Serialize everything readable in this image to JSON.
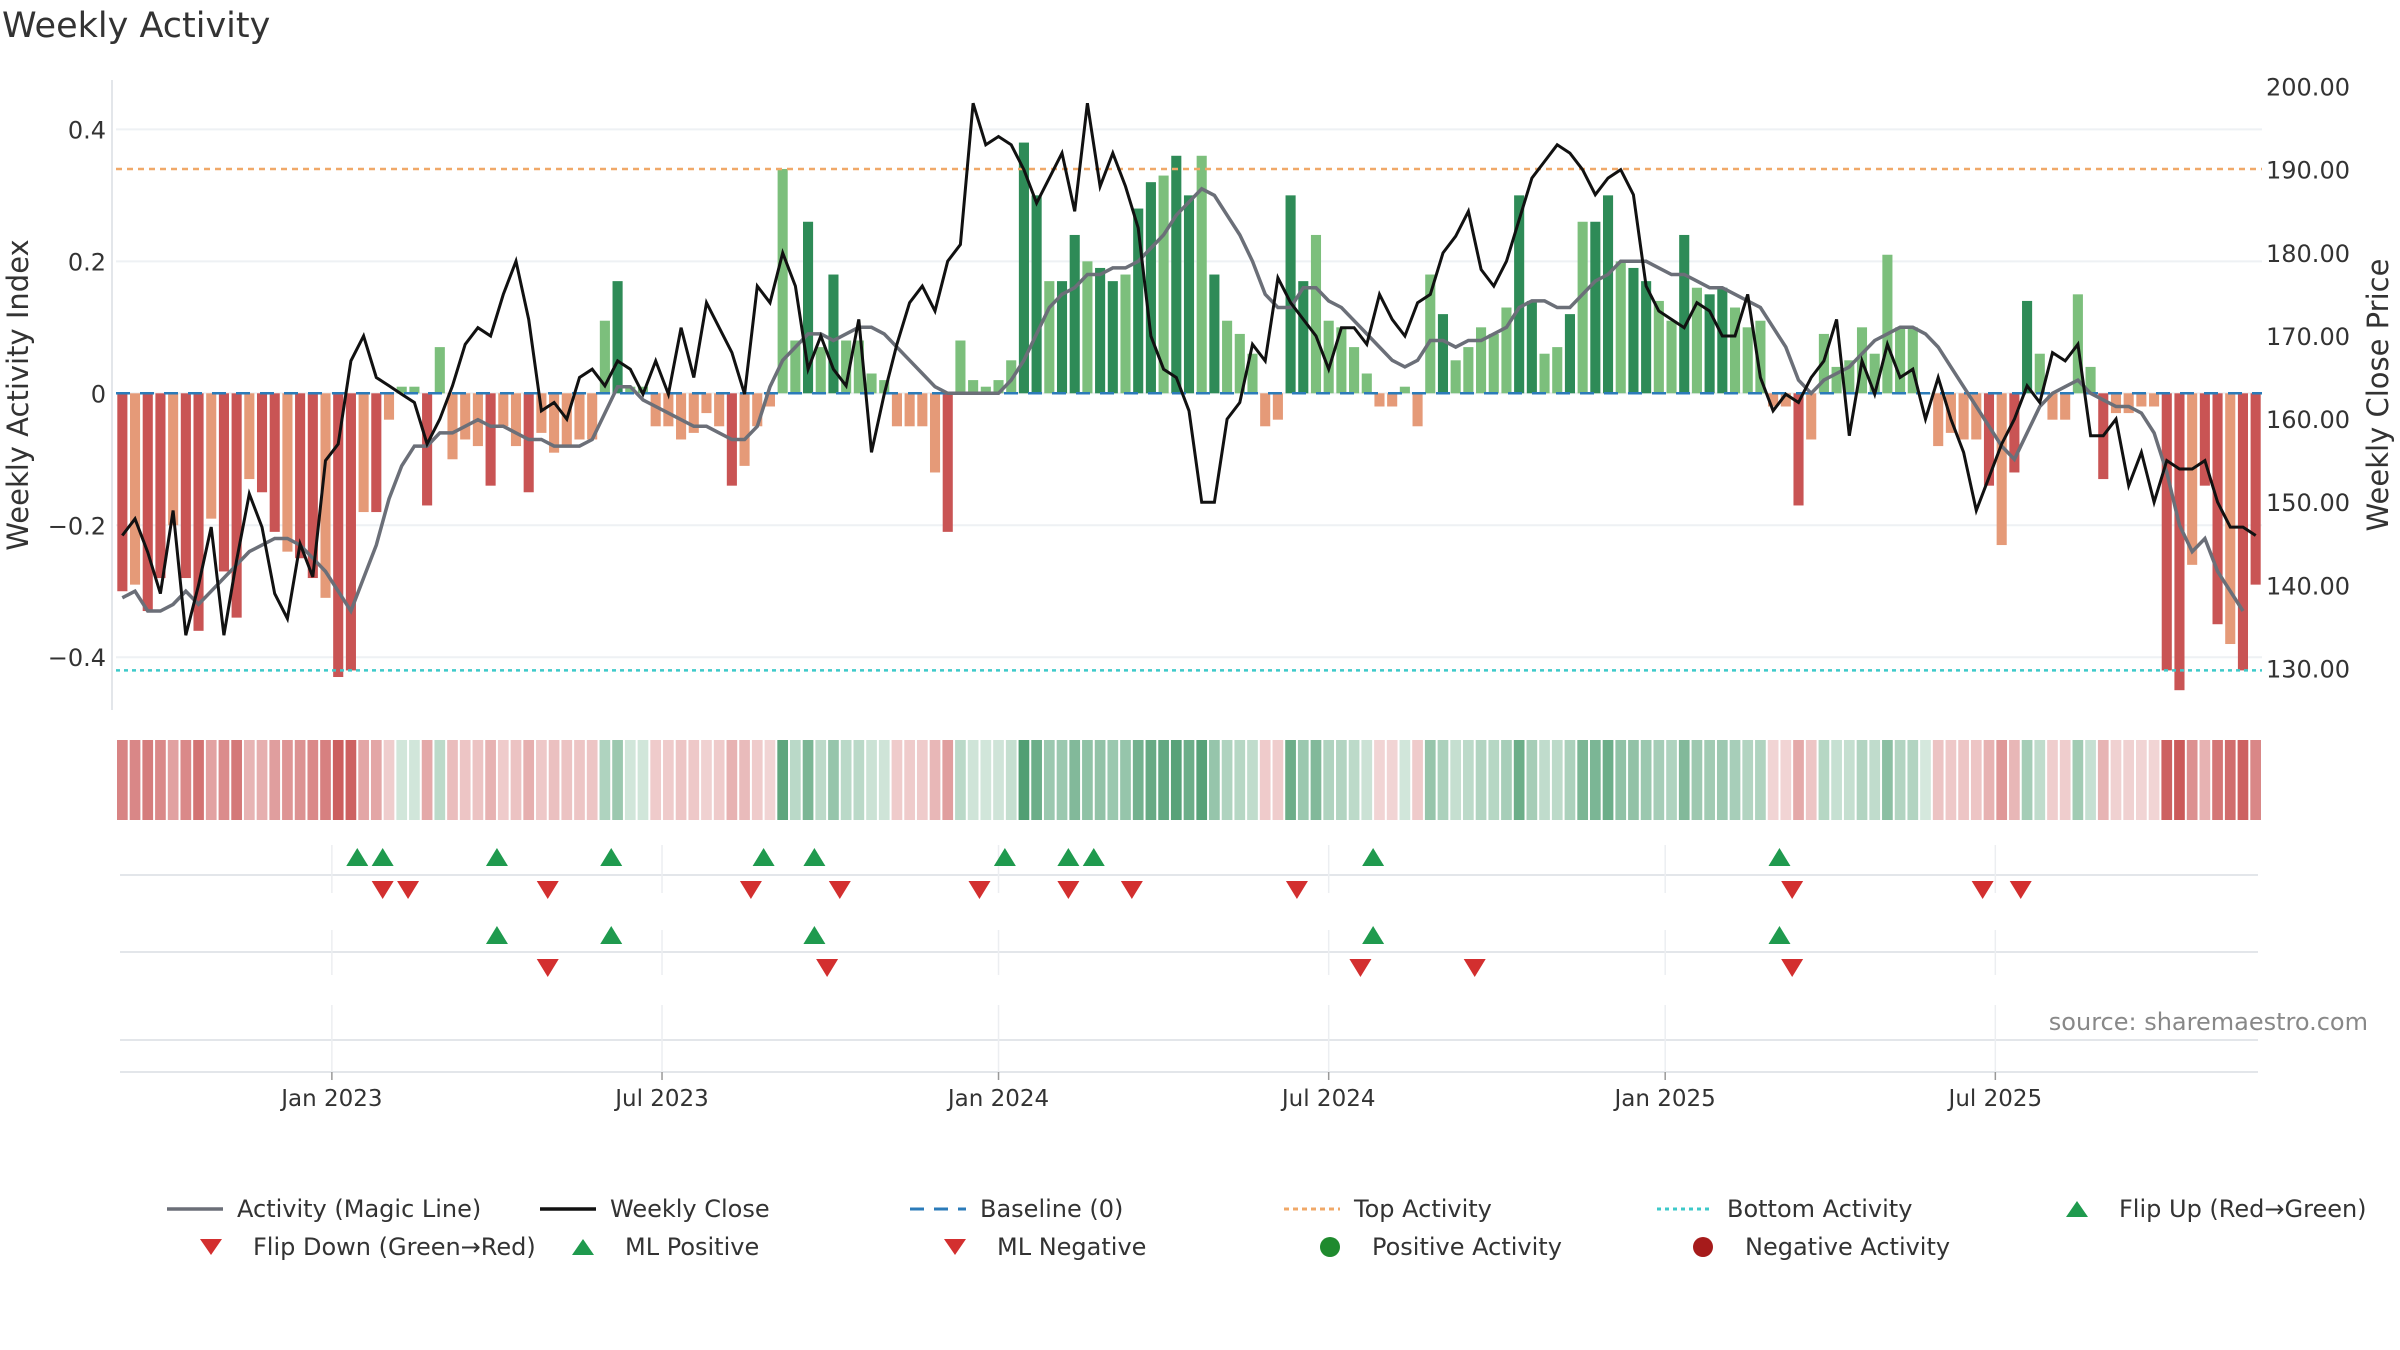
{
  "title": "Weekly Activity",
  "source": "source: sharemaestro.com",
  "colors": {
    "green_dark": "#2e8b57",
    "green_light": "#7cbf7c",
    "red_dark": "#c95454",
    "red_light": "#e59a78",
    "magic_line": "#6b6f78",
    "close_line": "#111111",
    "baseline": "#2b7bb9",
    "top": "#f0a868",
    "bottom": "#3ec9c9",
    "flip_up": "#1f9a4e",
    "flip_down": "#d32f2f"
  },
  "chart_data": {
    "type": "bar+line",
    "title": "Weekly Activity",
    "ylabel": "Weekly Activity Index",
    "ylabel_right": "Weekly Close Price",
    "ylim": [
      -0.48,
      0.49
    ],
    "ylim_right": [
      125,
      202
    ],
    "y_ticks": [
      0.4,
      0.2,
      0,
      -0.2,
      -0.4
    ],
    "y_tick_labels": [
      "0.4",
      "0.2",
      "0",
      "−0.2",
      "−0.4"
    ],
    "y_right_ticks": [
      200,
      190,
      180,
      170,
      160,
      150,
      140,
      130
    ],
    "y_right_tick_labels": [
      "200.00",
      "190.00",
      "180.00",
      "170.00",
      "160.00",
      "150.00",
      "140.00",
      "130.00"
    ],
    "x_tick_labels": [
      {
        "label": "Jan 2023",
        "week": 17
      },
      {
        "label": "Jul 2023",
        "week": 43
      },
      {
        "label": "Jan 2024",
        "week": 69.5
      },
      {
        "label": "Jul 2024",
        "week": 95.5
      },
      {
        "label": "Jan 2025",
        "week": 122
      },
      {
        "label": "Jul 2025",
        "week": 148
      }
    ],
    "top_activity": 0.34,
    "bottom_activity": -0.42,
    "baseline": 0,
    "activity": [
      -0.3,
      -0.29,
      -0.33,
      -0.28,
      -0.2,
      -0.28,
      -0.36,
      -0.19,
      -0.27,
      -0.34,
      -0.13,
      -0.15,
      -0.21,
      -0.24,
      -0.25,
      -0.28,
      -0.31,
      -0.43,
      -0.42,
      -0.18,
      -0.18,
      -0.04,
      0.01,
      0.01,
      -0.17,
      0.07,
      -0.1,
      -0.07,
      -0.08,
      -0.14,
      -0.05,
      -0.08,
      -0.15,
      -0.06,
      -0.09,
      -0.08,
      -0.07,
      -0.07,
      0.11,
      0.17,
      0.01,
      0.01,
      -0.05,
      -0.05,
      -0.07,
      -0.06,
      -0.03,
      -0.05,
      -0.14,
      -0.11,
      -0.05,
      -0.02,
      0.34,
      0.08,
      0.26,
      0.07,
      0.18,
      0.08,
      0.08,
      0.03,
      0.02,
      -0.05,
      -0.05,
      -0.05,
      -0.12,
      -0.21,
      0.08,
      0.02,
      0.01,
      0.02,
      0.05,
      0.38,
      0.3,
      0.17,
      0.17,
      0.24,
      0.2,
      0.19,
      0.17,
      0.18,
      0.28,
      0.32,
      0.33,
      0.36,
      0.3,
      0.36,
      0.18,
      0.11,
      0.09,
      0.06,
      -0.05,
      -0.04,
      0.3,
      0.17,
      0.24,
      0.11,
      0.1,
      0.07,
      0.03,
      -0.02,
      -0.02,
      0.01,
      -0.05,
      0.18,
      0.12,
      0.05,
      0.07,
      0.1,
      0.09,
      0.13,
      0.3,
      0.14,
      0.06,
      0.07,
      0.12,
      0.26,
      0.26,
      0.3,
      0.2,
      0.19,
      0.17,
      0.14,
      0.11,
      0.24,
      0.16,
      0.15,
      0.16,
      0.13,
      0.1,
      0.11,
      -0.02,
      -0.02,
      -0.17,
      -0.07,
      0.09,
      0.04,
      0.05,
      0.1,
      0.06,
      0.21,
      0.1,
      0.1,
      0.0,
      -0.08,
      -0.06,
      -0.07,
      -0.07,
      -0.14,
      -0.23,
      -0.12,
      0.14,
      0.06,
      -0.04,
      -0.04,
      0.15,
      0.04,
      -0.13,
      -0.03,
      -0.03,
      -0.02,
      -0.02,
      -0.42,
      -0.45,
      -0.26,
      -0.14,
      -0.35,
      -0.38,
      -0.42,
      -0.29
    ],
    "magic_line": [
      -0.31,
      -0.3,
      -0.33,
      -0.33,
      -0.32,
      -0.3,
      -0.32,
      -0.3,
      -0.28,
      -0.26,
      -0.24,
      -0.23,
      -0.22,
      -0.22,
      -0.23,
      -0.25,
      -0.27,
      -0.3,
      -0.33,
      -0.28,
      -0.23,
      -0.16,
      -0.11,
      -0.08,
      -0.08,
      -0.06,
      -0.06,
      -0.05,
      -0.04,
      -0.05,
      -0.05,
      -0.06,
      -0.07,
      -0.07,
      -0.08,
      -0.08,
      -0.08,
      -0.07,
      -0.03,
      0.01,
      0.01,
      -0.01,
      -0.02,
      -0.03,
      -0.04,
      -0.05,
      -0.05,
      -0.06,
      -0.07,
      -0.07,
      -0.05,
      0.01,
      0.05,
      0.07,
      0.09,
      0.09,
      0.08,
      0.09,
      0.1,
      0.1,
      0.09,
      0.07,
      0.05,
      0.03,
      0.01,
      0.0,
      0.0,
      0.0,
      0.0,
      0.0,
      0.02,
      0.05,
      0.09,
      0.13,
      0.15,
      0.16,
      0.18,
      0.18,
      0.19,
      0.19,
      0.2,
      0.22,
      0.24,
      0.27,
      0.29,
      0.31,
      0.3,
      0.27,
      0.24,
      0.2,
      0.15,
      0.13,
      0.13,
      0.16,
      0.16,
      0.14,
      0.13,
      0.11,
      0.09,
      0.07,
      0.05,
      0.04,
      0.05,
      0.08,
      0.08,
      0.07,
      0.08,
      0.08,
      0.09,
      0.1,
      0.13,
      0.14,
      0.14,
      0.13,
      0.13,
      0.15,
      0.17,
      0.18,
      0.2,
      0.2,
      0.2,
      0.19,
      0.18,
      0.18,
      0.17,
      0.16,
      0.16,
      0.15,
      0.14,
      0.13,
      0.1,
      0.07,
      0.02,
      0.0,
      0.02,
      0.03,
      0.04,
      0.06,
      0.08,
      0.09,
      0.1,
      0.1,
      0.09,
      0.07,
      0.04,
      0.01,
      -0.02,
      -0.05,
      -0.08,
      -0.1,
      -0.06,
      -0.02,
      0.0,
      0.01,
      0.02,
      0.0,
      -0.01,
      -0.02,
      -0.02,
      -0.03,
      -0.06,
      -0.12,
      -0.2,
      -0.24,
      -0.22,
      -0.27,
      -0.3,
      -0.33
    ],
    "weekly_close": [
      146,
      148,
      144,
      139,
      149,
      134,
      140,
      147,
      134,
      143,
      151,
      147,
      139,
      136,
      145,
      141,
      155,
      157,
      167,
      170,
      165,
      164,
      163,
      162,
      157,
      160,
      164,
      169,
      171,
      170,
      175,
      179,
      172,
      161,
      162,
      160,
      165,
      166,
      164,
      167,
      166,
      163,
      167,
      163,
      171,
      165,
      174,
      171,
      168,
      163,
      176,
      174,
      180,
      176,
      166,
      170,
      166,
      164,
      172,
      156,
      163,
      169,
      174,
      176,
      173,
      179,
      181,
      198,
      193,
      194,
      193,
      190,
      186,
      189,
      192,
      185,
      198,
      188,
      192,
      188,
      183,
      170,
      166,
      165,
      161,
      150,
      150,
      160,
      162,
      169,
      167,
      177,
      174,
      172,
      170,
      166,
      171,
      171,
      169,
      175,
      172,
      170,
      174,
      175,
      180,
      182,
      185,
      178,
      176,
      179,
      184,
      189,
      191,
      193,
      192,
      190,
      187,
      189,
      190,
      187,
      176,
      173,
      172,
      171,
      174,
      173,
      170,
      170,
      175,
      165,
      161,
      163,
      162,
      165,
      167,
      172,
      158,
      167,
      163,
      169,
      165,
      166,
      160,
      165,
      160,
      156,
      149,
      153,
      157,
      160,
      164,
      162,
      168,
      167,
      169,
      158,
      158,
      160,
      152,
      156,
      150,
      155,
      154,
      154,
      155,
      150,
      147,
      147,
      146
    ],
    "flip_up_row1": [
      19,
      21,
      30,
      39,
      51,
      55,
      70,
      75,
      77,
      99,
      131
    ],
    "flip_down_row1": [
      21,
      23,
      34,
      50,
      57,
      68,
      75,
      80,
      93,
      132,
      147,
      150
    ],
    "ml_positive": [
      30,
      39,
      55,
      99,
      131
    ],
    "ml_negative": [
      34,
      56,
      98,
      107,
      132
    ]
  },
  "legend": [
    {
      "label": "Activity (Magic Line)",
      "symbol": "line-gray"
    },
    {
      "label": "Weekly Close",
      "symbol": "line-black"
    },
    {
      "label": "Baseline (0)",
      "symbol": "dash-blue"
    },
    {
      "label": "Top Activity",
      "symbol": "dot-orange"
    },
    {
      "label": "Bottom Activity",
      "symbol": "dot-cyan"
    },
    {
      "label": "Flip Up (Red→Green)",
      "symbol": "tri-up"
    },
    {
      "label": "Flip Down (Green→Red)",
      "symbol": "tri-down"
    },
    {
      "label": "ML Positive",
      "symbol": "tri-up"
    },
    {
      "label": "ML Negative",
      "symbol": "tri-down"
    },
    {
      "label": "Positive Activity",
      "symbol": "circle-green"
    },
    {
      "label": "Negative Activity",
      "symbol": "circle-red"
    }
  ]
}
